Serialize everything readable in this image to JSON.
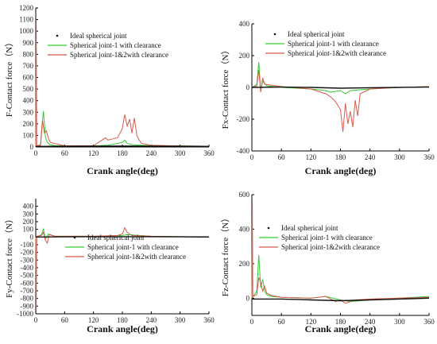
{
  "figure": {
    "xlabel": "Crank angle(deg)",
    "legend": [
      "Ideal spherical joint",
      "Spherical joint-1 with clearance",
      "Spherical joint-1&2with clearance"
    ],
    "colors": {
      "ideal": "#111111",
      "joint1": "#32cd32",
      "joint12": "#d85a4a"
    }
  },
  "chart_data": [
    {
      "type": "line",
      "ylabel": "F-Contact force（N）",
      "xlim": [
        0,
        360
      ],
      "ylim": [
        0,
        1200
      ],
      "xticks": [
        "0",
        "60",
        "120",
        "180",
        "240",
        "300",
        "360"
      ],
      "yticks": [
        "0",
        "100",
        "200",
        "300",
        "400",
        "500",
        "600",
        "700",
        "800",
        "900",
        "1000",
        "1100",
        "1200"
      ],
      "series": [
        {
          "name": "Ideal spherical joint",
          "x": [
            0,
            60,
            120,
            180,
            240,
            300,
            360
          ],
          "y": [
            5,
            6,
            7,
            8,
            7,
            6,
            5
          ]
        },
        {
          "name": "Spherical joint-1 with clearance",
          "x": [
            0,
            10,
            12,
            16,
            20,
            24,
            30,
            40,
            60,
            120,
            150,
            180,
            185,
            190,
            200,
            240,
            300,
            360
          ],
          "y": [
            5,
            20,
            150,
            310,
            90,
            40,
            20,
            12,
            8,
            8,
            15,
            40,
            60,
            30,
            20,
            10,
            8,
            6
          ]
        },
        {
          "name": "Spherical joint-1&2with clearance",
          "x": [
            0,
            1,
            2,
            10,
            14,
            18,
            22,
            26,
            30,
            60,
            120,
            145,
            150,
            160,
            170,
            180,
            185,
            190,
            195,
            200,
            205,
            210,
            215,
            220,
            240,
            300,
            360
          ],
          "y": [
            5,
            1100,
            10,
            15,
            230,
            120,
            140,
            80,
            40,
            10,
            10,
            80,
            60,
            70,
            80,
            160,
            280,
            180,
            240,
            120,
            250,
            100,
            60,
            30,
            15,
            8,
            6
          ]
        }
      ]
    },
    {
      "type": "line",
      "ylabel": "Fx-Contact force（N）",
      "xlim": [
        0,
        360
      ],
      "ylim": [
        -400,
        400
      ],
      "xticks": [
        "0",
        "60",
        "120",
        "180",
        "240",
        "300",
        "360"
      ],
      "yticks": [
        "-400",
        "-200",
        "0",
        "200",
        "400"
      ],
      "series": [
        {
          "name": "Ideal spherical joint",
          "x": [
            0,
            60,
            120,
            180,
            240,
            300,
            360
          ],
          "y": [
            0,
            2,
            0,
            -5,
            -2,
            0,
            2
          ]
        },
        {
          "name": "Spherical joint-1 with clearance",
          "x": [
            0,
            10,
            14,
            18,
            22,
            30,
            60,
            120,
            150,
            160,
            180,
            190,
            200,
            240,
            300,
            360
          ],
          "y": [
            0,
            20,
            160,
            -20,
            40,
            10,
            0,
            -10,
            -20,
            -30,
            -20,
            -40,
            -20,
            -10,
            0,
            5
          ]
        },
        {
          "name": "Spherical joint-1&2with clearance",
          "x": [
            0,
            10,
            14,
            18,
            22,
            26,
            60,
            120,
            150,
            160,
            170,
            180,
            185,
            190,
            195,
            200,
            205,
            210,
            215,
            220,
            240,
            300,
            360
          ],
          "y": [
            0,
            10,
            110,
            -30,
            60,
            20,
            5,
            -10,
            -40,
            -60,
            -90,
            -140,
            -280,
            -100,
            -230,
            -150,
            -250,
            -80,
            -180,
            -40,
            -10,
            0,
            5
          ]
        }
      ]
    },
    {
      "type": "line",
      "ylabel": "Fy-Contact force（N）",
      "xlim": [
        0,
        360
      ],
      "ylim": [
        -1000,
        500
      ],
      "xticks": [
        "0",
        "60",
        "120",
        "180",
        "240",
        "300",
        "360"
      ],
      "yticks": [
        "-1000",
        "-900",
        "-800",
        "-700",
        "-600",
        "-500",
        "-400",
        "-300",
        "-200",
        "-100",
        "0",
        "100",
        "200",
        "300",
        "400"
      ],
      "series": [
        {
          "name": "Ideal spherical joint",
          "x": [
            0,
            60,
            120,
            180,
            240,
            300,
            360
          ],
          "y": [
            0,
            2,
            4,
            5,
            4,
            2,
            0
          ]
        },
        {
          "name": "Spherical joint-1 with clearance",
          "x": [
            0,
            12,
            16,
            20,
            26,
            40,
            120,
            180,
            190,
            240,
            300,
            360
          ],
          "y": [
            0,
            30,
            110,
            -30,
            40,
            10,
            10,
            20,
            30,
            10,
            5,
            0
          ]
        },
        {
          "name": "Spherical joint-1&2with clearance",
          "x": [
            0,
            1,
            2,
            12,
            16,
            20,
            24,
            28,
            40,
            120,
            170,
            180,
            185,
            190,
            200,
            240,
            300,
            360
          ],
          "y": [
            0,
            -980,
            10,
            20,
            60,
            -40,
            -80,
            30,
            10,
            10,
            20,
            40,
            120,
            60,
            20,
            10,
            5,
            0
          ]
        }
      ]
    },
    {
      "type": "line",
      "ylabel": "Fz-Contact force（N）",
      "xlim": [
        0,
        360
      ],
      "ylim": [
        -100,
        600
      ],
      "xticks": [
        "0",
        "60",
        "120",
        "180",
        "240",
        "300",
        "360"
      ],
      "yticks": [
        "0",
        "200",
        "400",
        "600"
      ],
      "series": [
        {
          "name": "Ideal spherical joint",
          "x": [
            0,
            60,
            120,
            180,
            240,
            300,
            360
          ],
          "y": [
            -5,
            -5,
            -10,
            -15,
            -10,
            -5,
            0
          ]
        },
        {
          "name": "Spherical joint-1 with clearance",
          "x": [
            0,
            10,
            14,
            18,
            22,
            26,
            30,
            40,
            60,
            120,
            150,
            180,
            200,
            240,
            300,
            360
          ],
          "y": [
            0,
            40,
            250,
            60,
            110,
            40,
            20,
            10,
            5,
            0,
            10,
            -10,
            -20,
            -10,
            0,
            10
          ]
        },
        {
          "name": "Spherical joint-1&2with clearance",
          "x": [
            0,
            1,
            2,
            10,
            14,
            18,
            22,
            26,
            30,
            40,
            60,
            120,
            150,
            170,
            180,
            190,
            200,
            210,
            240,
            300,
            360
          ],
          "y": [
            0,
            560,
            10,
            20,
            120,
            90,
            40,
            70,
            30,
            15,
            5,
            0,
            10,
            -20,
            -10,
            -30,
            -20,
            -10,
            -5,
            0,
            5
          ]
        }
      ]
    }
  ]
}
